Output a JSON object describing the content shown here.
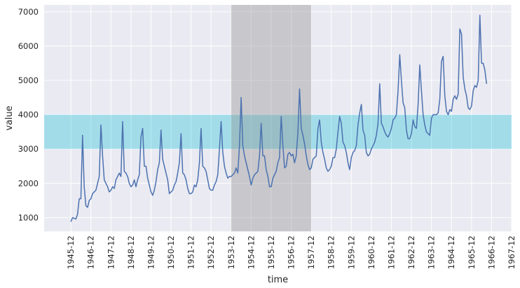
{
  "chart_data": {
    "type": "line",
    "title": "",
    "xlabel": "time",
    "ylabel": "value",
    "x_start": "1945-12",
    "x_step": "month",
    "xlim": [
      "1944-08",
      "1967-12"
    ],
    "ylim": [
      600,
      7200
    ],
    "y_ticks": [
      1000,
      2000,
      3000,
      4000,
      5000,
      6000,
      7000
    ],
    "x_ticks": [
      "1945-12",
      "1946-12",
      "1947-12",
      "1948-12",
      "1949-12",
      "1950-12",
      "1951-12",
      "1952-12",
      "1953-12",
      "1954-12",
      "1955-12",
      "1956-12",
      "1957-12",
      "1958-12",
      "1959-12",
      "1960-12",
      "1961-12",
      "1962-12",
      "1963-12",
      "1964-12",
      "1965-12",
      "1966-12",
      "1967-12"
    ],
    "grid": true,
    "series": [
      {
        "color": "#4c72b0",
        "values": [
          880,
          1000,
          980,
          960,
          1100,
          1550,
          1550,
          3400,
          1900,
          1350,
          1300,
          1500,
          1550,
          1700,
          1750,
          1800,
          2000,
          2200,
          3700,
          2800,
          2100,
          2000,
          1900,
          1750,
          1800,
          1900,
          1850,
          2100,
          2200,
          2300,
          2200,
          3800,
          2350,
          2300,
          2200,
          2000,
          1900,
          1950,
          2100,
          1900,
          2100,
          2250,
          3350,
          3600,
          2500,
          2500,
          2150,
          1950,
          1750,
          1650,
          1800,
          2050,
          2400,
          2600,
          3550,
          2700,
          2500,
          2300,
          2100,
          1700,
          1750,
          1800,
          1950,
          2050,
          2300,
          2600,
          3450,
          2300,
          2250,
          2100,
          1850,
          1700,
          1700,
          1750,
          1950,
          1900,
          2100,
          2600,
          3600,
          2500,
          2450,
          2350,
          2100,
          1850,
          1800,
          1800,
          1950,
          2050,
          2250,
          3000,
          3800,
          2900,
          2500,
          2300,
          2150,
          2200,
          2200,
          2250,
          2300,
          2450,
          2300,
          3100,
          4500,
          3100,
          2800,
          2600,
          2400,
          2200,
          1950,
          2150,
          2250,
          2300,
          2350,
          2800,
          3750,
          2800,
          2800,
          2400,
          2200,
          1900,
          1900,
          2150,
          2250,
          2350,
          2600,
          2750,
          3950,
          3100,
          2450,
          2500,
          2850,
          2900,
          2800,
          2850,
          2600,
          2800,
          3500,
          4750,
          3600,
          3400,
          3150,
          2800,
          2550,
          2400,
          2450,
          2700,
          2750,
          2800,
          3600,
          3850,
          3200,
          2900,
          2700,
          2450,
          2350,
          2400,
          2500,
          2750,
          2750,
          3000,
          3500,
          3950,
          3750,
          3200,
          3100,
          2900,
          2600,
          2400,
          2750,
          2900,
          2950,
          3100,
          3700,
          4050,
          4300,
          3550,
          3400,
          2900,
          2800,
          2850,
          3000,
          3100,
          3200,
          3400,
          3750,
          4900,
          3750,
          3650,
          3500,
          3400,
          3350,
          3450,
          3600,
          3850,
          3900,
          4000,
          4700,
          5750,
          5000,
          4350,
          4200,
          3550,
          3300,
          3300,
          3450,
          3850,
          3650,
          3600,
          4300,
          5450,
          4700,
          4000,
          3700,
          3500,
          3450,
          3400,
          3900,
          4000,
          4000,
          4000,
          4050,
          4450,
          5550,
          5700,
          4550,
          4100,
          4000,
          4150,
          4100,
          4450,
          4550,
          4450,
          4600,
          6500,
          6350,
          5100,
          4750,
          4550,
          4200,
          4150,
          4250,
          4700,
          4850,
          4800,
          5000,
          6900,
          5500,
          5500,
          5300,
          4900
        ]
      }
    ],
    "highlight_x_span": {
      "from": "1953-12",
      "to": "1957-12",
      "color": "#888888"
    },
    "highlight_y_band": {
      "from": 3000,
      "to": 4000,
      "color": "#00bcd4"
    }
  }
}
